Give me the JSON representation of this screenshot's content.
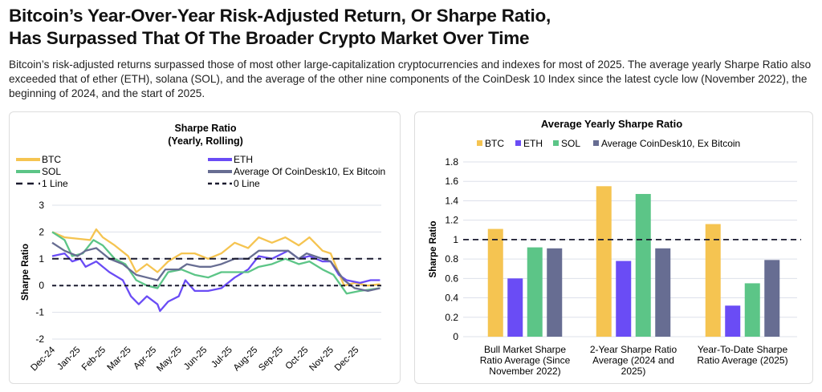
{
  "header": {
    "title_line1": "Bitcoin’s Year-Over-Year Risk-Adjusted Return, Or Sharpe Ratio,",
    "title_line2": "Has Surpassed That Of The Broader Crypto Market Over Time",
    "subtitle": "Bitcoin’s risk-adjusted returns surpassed those of most other large-capitalization cryptocurrencies and indexes for most of 2025. The average yearly Sharpe Ratio also exceeded that of ether (ETH), solana (SOL), and the average of the other nine components of the CoinDesk 10 Index since the latest cycle low (November 2022), the beginning of 2024, and the start of 2025."
  },
  "colors": {
    "BTC": "#f5c451",
    "ETH": "#6a4cf5",
    "SOL": "#5cc587",
    "AVG": "#676d92",
    "ref": "#1a1a2e"
  },
  "chart_data": [
    {
      "type": "line",
      "title": "Sharpe Ratio",
      "subtitle": "(Yearly, Rolling)",
      "ylabel": "Sharpe Ratio",
      "ylim": [
        -2,
        3
      ],
      "yticks": [
        3,
        2,
        1,
        0,
        -1,
        -2
      ],
      "xlim": [
        0,
        13
      ],
      "xticks": [
        "Dec-24",
        "Jan-25",
        "Feb-25",
        "Mar-25",
        "Apr-25",
        "May-25",
        "Jun-25",
        "Jul-25",
        "Aug-25",
        "Sep-25",
        "Oct-25",
        "Nov-25",
        "Dec-25"
      ],
      "legend": [
        "BTC",
        "ETH",
        "SOL",
        "Average Of CoinDesk10, Ex Bitcoin",
        "1 Line",
        "0 Line"
      ],
      "reference_lines": [
        {
          "name": "1 Line",
          "y": 1
        },
        {
          "name": "0 Line",
          "y": 0
        }
      ],
      "series": [
        {
          "name": "BTC",
          "key": "BTC",
          "points": [
            [
              0,
              2.0
            ],
            [
              0.49,
              1.8
            ],
            [
              1.0,
              1.75
            ],
            [
              1.5,
              1.7
            ],
            [
              1.74,
              2.1
            ],
            [
              2.0,
              1.8
            ],
            [
              2.47,
              1.5
            ],
            [
              3.0,
              1.1
            ],
            [
              3.32,
              0.5
            ],
            [
              3.74,
              0.8
            ],
            [
              4.16,
              0.5
            ],
            [
              4.58,
              0.9
            ],
            [
              5.11,
              1.2
            ],
            [
              5.63,
              1.2
            ],
            [
              6.16,
              1.0
            ],
            [
              6.68,
              1.2
            ],
            [
              7.21,
              1.6
            ],
            [
              7.74,
              1.4
            ],
            [
              8.16,
              1.8
            ],
            [
              8.68,
              1.6
            ],
            [
              9.21,
              1.8
            ],
            [
              9.74,
              1.5
            ],
            [
              10.16,
              1.8
            ],
            [
              10.68,
              1.3
            ],
            [
              11.0,
              1.2
            ],
            [
              11.53,
              0.0
            ],
            [
              11.95,
              0.1
            ],
            [
              12.47,
              0.0
            ],
            [
              12.95,
              0.05
            ]
          ]
        },
        {
          "name": "ETH",
          "key": "ETH",
          "points": [
            [
              0,
              1.1
            ],
            [
              0.49,
              1.2
            ],
            [
              0.79,
              0.9
            ],
            [
              1.11,
              1.0
            ],
            [
              1.32,
              0.7
            ],
            [
              1.74,
              0.9
            ],
            [
              2.26,
              0.5
            ],
            [
              2.79,
              0.2
            ],
            [
              3.11,
              -0.4
            ],
            [
              3.42,
              -0.7
            ],
            [
              3.74,
              -0.4
            ],
            [
              4.16,
              -0.7
            ],
            [
              4.26,
              -0.95
            ],
            [
              4.58,
              -0.6
            ],
            [
              5.0,
              -0.4
            ],
            [
              5.26,
              0.2
            ],
            [
              5.63,
              -0.2
            ],
            [
              6.16,
              -0.2
            ],
            [
              6.68,
              -0.1
            ],
            [
              7.21,
              0.3
            ],
            [
              7.74,
              0.6
            ],
            [
              8.16,
              1.1
            ],
            [
              8.68,
              1.0
            ],
            [
              9.32,
              1.3
            ],
            [
              9.74,
              1.0
            ],
            [
              10.16,
              1.1
            ],
            [
              10.68,
              0.9
            ],
            [
              11.0,
              0.9
            ],
            [
              11.32,
              0.4
            ],
            [
              11.63,
              0.2
            ],
            [
              12.16,
              0.1
            ],
            [
              12.58,
              0.2
            ],
            [
              12.95,
              0.2
            ]
          ]
        },
        {
          "name": "SOL",
          "key": "SOL",
          "points": [
            [
              0,
              2.0
            ],
            [
              0.49,
              1.7
            ],
            [
              0.79,
              1.1
            ],
            [
              1.21,
              1.2
            ],
            [
              1.63,
              1.7
            ],
            [
              2.0,
              1.5
            ],
            [
              2.47,
              1.0
            ],
            [
              2.89,
              0.8
            ],
            [
              3.32,
              0.2
            ],
            [
              3.74,
              0.0
            ],
            [
              4.16,
              -0.1
            ],
            [
              4.58,
              0.5
            ],
            [
              5.11,
              0.6
            ],
            [
              5.63,
              0.4
            ],
            [
              6.16,
              0.3
            ],
            [
              6.68,
              0.5
            ],
            [
              7.21,
              0.5
            ],
            [
              7.74,
              0.5
            ],
            [
              8.16,
              0.7
            ],
            [
              8.68,
              0.8
            ],
            [
              9.21,
              1.0
            ],
            [
              9.74,
              0.8
            ],
            [
              10.16,
              0.9
            ],
            [
              10.68,
              0.6
            ],
            [
              11.11,
              0.4
            ],
            [
              11.63,
              -0.3
            ],
            [
              12.16,
              -0.2
            ],
            [
              12.95,
              -0.1
            ]
          ]
        },
        {
          "name": "Average Of CoinDesk10, Ex Bitcoin",
          "key": "AVG",
          "points": [
            [
              0,
              1.6
            ],
            [
              0.49,
              1.3
            ],
            [
              1.0,
              1.1
            ],
            [
              1.32,
              1.3
            ],
            [
              1.74,
              1.4
            ],
            [
              2.26,
              1.0
            ],
            [
              2.79,
              0.8
            ],
            [
              3.32,
              0.4
            ],
            [
              3.74,
              0.3
            ],
            [
              4.16,
              0.2
            ],
            [
              4.47,
              0.6
            ],
            [
              5.0,
              0.6
            ],
            [
              5.32,
              0.8
            ],
            [
              5.84,
              0.7
            ],
            [
              6.26,
              0.7
            ],
            [
              6.68,
              0.8
            ],
            [
              7.21,
              1.0
            ],
            [
              7.74,
              1.0
            ],
            [
              8.16,
              1.3
            ],
            [
              8.68,
              1.3
            ],
            [
              9.32,
              1.3
            ],
            [
              9.74,
              1.0
            ],
            [
              10.05,
              1.2
            ],
            [
              10.68,
              1.0
            ],
            [
              11.0,
              0.9
            ],
            [
              11.53,
              0.2
            ],
            [
              11.95,
              -0.1
            ],
            [
              12.47,
              -0.2
            ],
            [
              12.95,
              -0.1
            ]
          ]
        }
      ]
    },
    {
      "type": "bar",
      "title": "Average Yearly Sharpe Ratio",
      "ylabel": "Sharpe Ratio",
      "ylim": [
        0,
        1.8
      ],
      "yticks": [
        1.8,
        1.6,
        1.4,
        1.2,
        1,
        0.8,
        0.6,
        0.4,
        0.2,
        0
      ],
      "legend": [
        "BTC",
        "ETH",
        "SOL",
        "Average CoinDesk10, Ex Bitcoin"
      ],
      "categories": [
        [
          "Bull Market Sharpe",
          "Ratio Average (Since",
          "November 2022)"
        ],
        [
          "2-Year Sharpe Ratio",
          "Average (2024 and",
          "2025)"
        ],
        [
          "Year-To-Date Sharpe",
          "Ratio Average (2025)"
        ]
      ],
      "reference_line": 1,
      "series": [
        {
          "name": "BTC",
          "key": "BTC",
          "values": [
            1.11,
            1.55,
            1.16
          ]
        },
        {
          "name": "ETH",
          "key": "ETH",
          "values": [
            0.6,
            0.78,
            0.32
          ]
        },
        {
          "name": "SOL",
          "key": "SOL",
          "values": [
            0.92,
            1.47,
            0.55
          ]
        },
        {
          "name": "Average CoinDesk10, Ex Bitcoin",
          "key": "AVG",
          "values": [
            0.91,
            0.91,
            0.79
          ]
        }
      ]
    }
  ]
}
